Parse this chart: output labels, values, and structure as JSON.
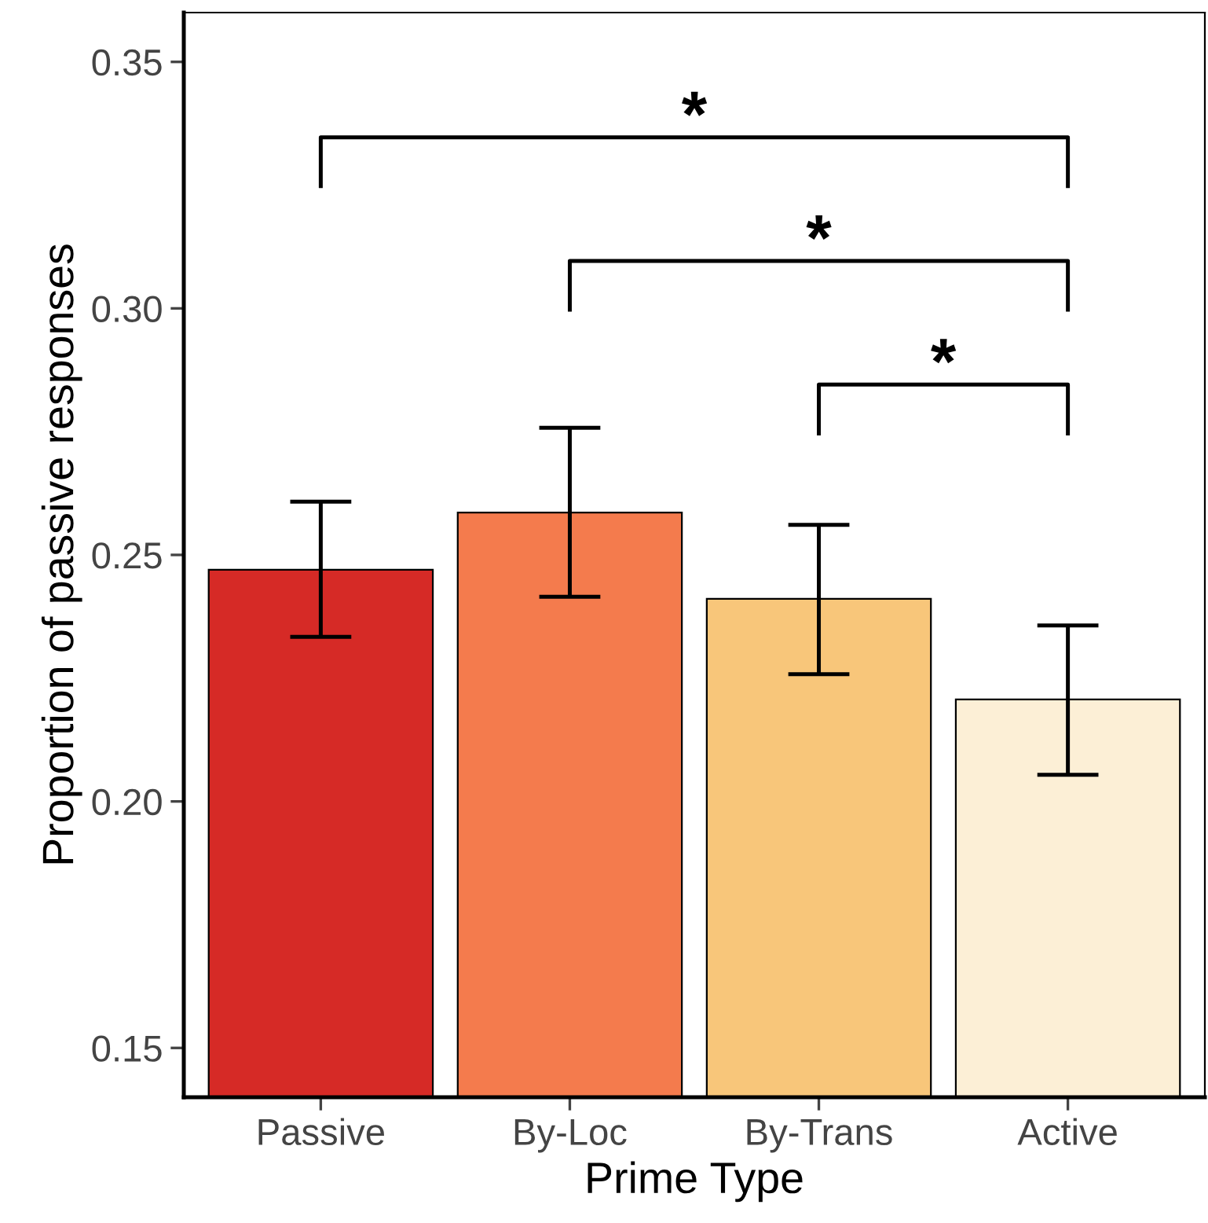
{
  "chart_data": {
    "type": "bar",
    "xlabel": "Prime Type",
    "ylabel": "Proportion of passive responses",
    "categories": [
      "Passive",
      "By-Loc",
      "By-Trans",
      "Active"
    ],
    "values": [
      0.247,
      0.2586,
      0.2411,
      0.2207
    ],
    "errors": [
      [
        0.2334,
        0.2608
      ],
      [
        0.2415,
        0.2758
      ],
      [
        0.2258,
        0.2561
      ],
      [
        0.2054,
        0.2357
      ]
    ],
    "colors": [
      "#d62a26",
      "#f47b4d",
      "#f8c67a",
      "#fcefd6"
    ],
    "ylim": [
      0.14,
      0.36
    ],
    "yticks": [
      0.15,
      {
        "value": 0.2,
        "label": "0.20"
      },
      0.25,
      {
        "value": 0.3,
        "label": "0.30"
      },
      0.35
    ],
    "annotations": [
      "*",
      "*",
      "*"
    ],
    "grid": false,
    "legend": false
  }
}
